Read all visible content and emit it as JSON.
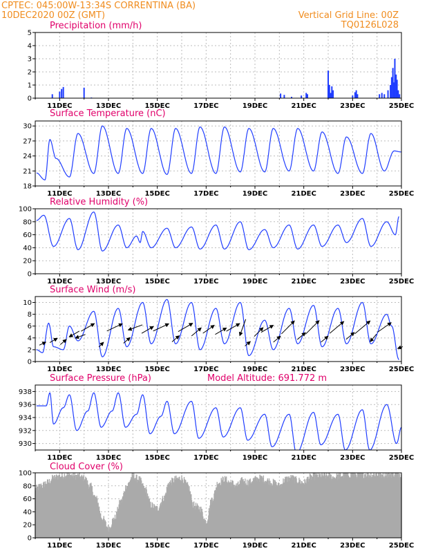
{
  "header": {
    "line1": "CPTEC:   045:00W-13:34S   CORRENTINA (BA)",
    "line2": "10DEC2020 00Z (GMT)",
    "right1": "Vertical Grid Line: 00Z",
    "right2": "TQ0126L028"
  },
  "colors": {
    "header": "#f08c1e",
    "title": "#e0006a",
    "line": "#1e3cff",
    "bar": "#1e3cff",
    "cloud": "#aaaaaa",
    "arrow": "#000000",
    "grid": "#bbbbbb"
  },
  "chart_data": [
    {
      "type": "bar",
      "title": "Precipitation (mm/h)",
      "x_ticks": [
        "11DEC",
        "13DEC",
        "15DEC",
        "17DEC",
        "19DEC",
        "21DEC",
        "23DEC",
        "25DEC"
      ],
      "x": {
        "start": "10DEC2020 00Z",
        "end": "25DEC2020 00Z",
        "unit": "hour"
      },
      "ylim": [
        0,
        5
      ],
      "y_ticks": [
        0,
        1,
        2,
        3,
        4,
        5
      ],
      "grid": true,
      "points": [
        [
          10.7,
          0.3
        ],
        [
          11.0,
          0.5
        ],
        [
          11.08,
          0.7
        ],
        [
          11.15,
          0.85
        ],
        [
          12.0,
          0.8
        ],
        [
          12.3,
          0.05
        ],
        [
          20.05,
          0.35
        ],
        [
          20.2,
          0.25
        ],
        [
          20.5,
          0.1
        ],
        [
          20.9,
          0.2
        ],
        [
          21.1,
          0.4
        ],
        [
          21.15,
          0.3
        ],
        [
          22.0,
          2.1
        ],
        [
          22.05,
          1.0
        ],
        [
          22.1,
          0.4
        ],
        [
          22.15,
          0.9
        ],
        [
          22.2,
          0.6
        ],
        [
          23.0,
          0.2
        ],
        [
          23.1,
          0.45
        ],
        [
          23.15,
          0.6
        ],
        [
          23.2,
          0.3
        ],
        [
          24.1,
          0.3
        ],
        [
          24.2,
          0.4
        ],
        [
          24.3,
          0.3
        ],
        [
          24.45,
          0.6
        ],
        [
          24.55,
          1.0
        ],
        [
          24.6,
          1.6
        ],
        [
          24.65,
          2.3
        ],
        [
          24.7,
          1.2
        ],
        [
          24.73,
          3.0
        ],
        [
          24.78,
          1.8
        ],
        [
          24.82,
          1.4
        ],
        [
          24.87,
          0.6
        ],
        [
          24.92,
          0.3
        ]
      ]
    },
    {
      "type": "line",
      "title": "Surface Temperature (nC)",
      "x_ticks": [
        "11DEC",
        "13DEC",
        "15DEC",
        "17DEC",
        "19DEC",
        "21DEC",
        "23DEC",
        "25DEC"
      ],
      "ylim": [
        18,
        31
      ],
      "y_ticks": [
        18,
        21,
        24,
        27,
        30
      ],
      "grid": true,
      "min_points": [
        [
          10.05,
          20.6
        ],
        [
          10.4,
          19.2
        ],
        [
          10.85,
          23.5
        ],
        [
          11.4,
          19.8
        ],
        [
          12.4,
          20.5
        ],
        [
          13.4,
          20.5
        ],
        [
          14.4,
          20.5
        ],
        [
          15.4,
          20.3
        ],
        [
          16.4,
          20.5
        ],
        [
          17.4,
          20.5
        ],
        [
          18.4,
          20.8
        ],
        [
          19.4,
          20.8
        ],
        [
          20.4,
          21.0
        ],
        [
          21.4,
          21.0
        ],
        [
          22.4,
          20.5
        ],
        [
          23.4,
          20.5
        ],
        [
          24.3,
          21.0
        ]
      ],
      "max_points": [
        [
          10.6,
          27.3
        ],
        [
          11.75,
          28.5
        ],
        [
          12.75,
          30.0
        ],
        [
          13.75,
          29.5
        ],
        [
          14.75,
          29.5
        ],
        [
          15.75,
          29.5
        ],
        [
          16.75,
          29.8
        ],
        [
          17.75,
          29.8
        ],
        [
          18.75,
          29.5
        ],
        [
          19.75,
          29.5
        ],
        [
          20.75,
          29.5
        ],
        [
          21.75,
          28.8
        ],
        [
          22.75,
          27.8
        ],
        [
          23.75,
          28.5
        ],
        [
          24.7,
          25.0
        ],
        [
          25.0,
          24.8
        ]
      ]
    },
    {
      "type": "line",
      "title": "Relative Humidity (%)",
      "x_ticks": [
        "11DEC",
        "13DEC",
        "15DEC",
        "17DEC",
        "19DEC",
        "21DEC",
        "23DEC",
        "25DEC"
      ],
      "ylim": [
        0,
        100
      ],
      "y_ticks": [
        0,
        20,
        40,
        60,
        80,
        100
      ],
      "grid": true,
      "min_points": [
        [
          10.75,
          42
        ],
        [
          11.75,
          37
        ],
        [
          12.75,
          35
        ],
        [
          13.75,
          40
        ],
        [
          14.3,
          48
        ],
        [
          14.75,
          40
        ],
        [
          15.75,
          40
        ],
        [
          16.75,
          38
        ],
        [
          17.75,
          38
        ],
        [
          18.75,
          37
        ],
        [
          19.75,
          40
        ],
        [
          20.75,
          38
        ],
        [
          21.75,
          42
        ],
        [
          22.75,
          48
        ],
        [
          23.75,
          42
        ],
        [
          24.75,
          60
        ]
      ],
      "max_points": [
        [
          10.05,
          82
        ],
        [
          10.35,
          90
        ],
        [
          11.4,
          85
        ],
        [
          12.4,
          95
        ],
        [
          13.4,
          75
        ],
        [
          14.15,
          58
        ],
        [
          14.4,
          65
        ],
        [
          15.4,
          70
        ],
        [
          16.4,
          72
        ],
        [
          17.4,
          75
        ],
        [
          18.4,
          80
        ],
        [
          19.4,
          68
        ],
        [
          20.4,
          75
        ],
        [
          21.4,
          75
        ],
        [
          22.4,
          75
        ],
        [
          23.4,
          85
        ],
        [
          24.4,
          80
        ],
        [
          24.9,
          88
        ]
      ]
    },
    {
      "type": "line",
      "title": "Surface Wind (m/s)",
      "x_ticks": [
        "11DEC",
        "13DEC",
        "15DEC",
        "17DEC",
        "19DEC",
        "21DEC",
        "23DEC",
        "25DEC"
      ],
      "ylim": [
        0,
        11
      ],
      "y_ticks": [
        0,
        2,
        4,
        6,
        8,
        10
      ],
      "grid": true,
      "min_points": [
        [
          10.05,
          2.0
        ],
        [
          10.3,
          1.5
        ],
        [
          10.75,
          2.5
        ],
        [
          11.15,
          2.0
        ],
        [
          11.75,
          3.5
        ],
        [
          12.75,
          0.8
        ],
        [
          13.75,
          2.5
        ],
        [
          14.75,
          3.0
        ],
        [
          15.75,
          3.0
        ],
        [
          16.75,
          2.0
        ],
        [
          17.75,
          3.0
        ],
        [
          18.75,
          1.0
        ],
        [
          19.75,
          2.0
        ],
        [
          20.75,
          3.0
        ],
        [
          21.75,
          2.5
        ],
        [
          22.75,
          3.0
        ],
        [
          23.75,
          3.0
        ],
        [
          24.9,
          0.3
        ]
      ],
      "max_points": [
        [
          10.55,
          6.5
        ],
        [
          11.4,
          6.0
        ],
        [
          12.4,
          8.5
        ],
        [
          13.4,
          9.0
        ],
        [
          14.4,
          10.0
        ],
        [
          15.4,
          10.5
        ],
        [
          16.4,
          10.0
        ],
        [
          17.4,
          9.0
        ],
        [
          18.4,
          10.0
        ],
        [
          19.4,
          7.0
        ],
        [
          20.4,
          9.0
        ],
        [
          21.4,
          9.5
        ],
        [
          22.4,
          9.0
        ],
        [
          23.4,
          10.0
        ],
        [
          24.4,
          8.0
        ],
        [
          24.6,
          6.0
        ]
      ],
      "arrows": [
        [
          10.3,
          25
        ],
        [
          10.75,
          30
        ],
        [
          11.15,
          40
        ],
        [
          11.6,
          210
        ],
        [
          11.85,
          200
        ],
        [
          12.15,
          30
        ],
        [
          12.7,
          45
        ],
        [
          13.25,
          25
        ],
        [
          13.75,
          40
        ],
        [
          14.1,
          200
        ],
        [
          14.6,
          30
        ],
        [
          15.15,
          25
        ],
        [
          15.75,
          40
        ],
        [
          16.15,
          30
        ],
        [
          16.6,
          40
        ],
        [
          17.1,
          35
        ],
        [
          17.6,
          30
        ],
        [
          18.1,
          30
        ],
        [
          18.5,
          250
        ],
        [
          18.7,
          40
        ],
        [
          19.15,
          45
        ],
        [
          19.5,
          30
        ],
        [
          19.9,
          40
        ],
        [
          20.35,
          45
        ],
        [
          20.9,
          40
        ],
        [
          21.35,
          45
        ],
        [
          21.85,
          40
        ],
        [
          22.35,
          40
        ],
        [
          22.9,
          40
        ],
        [
          23.4,
          40
        ],
        [
          23.85,
          230
        ],
        [
          24.3,
          35
        ],
        [
          24.95,
          200
        ]
      ]
    },
    {
      "type": "line",
      "title": "Surface Pressure (hPa)",
      "annotation": "Model Altitude: 691.772 m",
      "x_ticks": [
        "11DEC",
        "13DEC",
        "15DEC",
        "17DEC",
        "19DEC",
        "21DEC",
        "23DEC",
        "25DEC"
      ],
      "ylim": [
        929,
        939
      ],
      "y_ticks": [
        930,
        932,
        934,
        936,
        938
      ],
      "grid": true,
      "min_points": [
        [
          10.05,
          935.8
        ],
        [
          10.45,
          935.8
        ],
        [
          10.75,
          933.0
        ],
        [
          11.7,
          932.0
        ],
        [
          12.7,
          932.5
        ],
        [
          13.7,
          932.5
        ],
        [
          14.7,
          931.5
        ],
        [
          15.7,
          931.5
        ],
        [
          16.7,
          930.8
        ],
        [
          17.7,
          931.0
        ],
        [
          18.7,
          930.5
        ],
        [
          19.7,
          929.5
        ],
        [
          20.7,
          928.5
        ],
        [
          21.7,
          929.8
        ],
        [
          22.7,
          929.0
        ],
        [
          23.7,
          929.0
        ],
        [
          24.8,
          930.0
        ]
      ],
      "max_points": [
        [
          10.6,
          937.8
        ],
        [
          11.15,
          935.5
        ],
        [
          11.4,
          937.5
        ],
        [
          12.15,
          935.0
        ],
        [
          12.4,
          937.8
        ],
        [
          13.15,
          935.0
        ],
        [
          13.4,
          937.8
        ],
        [
          14.15,
          934.5
        ],
        [
          14.4,
          937.5
        ],
        [
          15.15,
          934.2
        ],
        [
          15.4,
          936.5
        ],
        [
          16.4,
          936.5
        ],
        [
          17.4,
          935.5
        ],
        [
          18.4,
          935.5
        ],
        [
          19.4,
          934.5
        ],
        [
          20.4,
          934.5
        ],
        [
          21.4,
          934.8
        ],
        [
          22.4,
          934.5
        ],
        [
          23.4,
          935.2
        ],
        [
          24.4,
          936.0
        ],
        [
          25.0,
          932.5
        ]
      ]
    },
    {
      "type": "area",
      "title": "Cloud Cover (%)",
      "x_ticks": [
        "11DEC",
        "13DEC",
        "15DEC",
        "17DEC",
        "19DEC",
        "21DEC",
        "23DEC",
        "25DEC"
      ],
      "ylim": [
        0,
        100
      ],
      "y_ticks": [
        0,
        20,
        40,
        60,
        80,
        100
      ],
      "grid": true,
      "points": [
        [
          10.0,
          75
        ],
        [
          10.25,
          80
        ],
        [
          10.5,
          85
        ],
        [
          10.75,
          92
        ],
        [
          11.0,
          95
        ],
        [
          11.25,
          97
        ],
        [
          11.5,
          96
        ],
        [
          11.75,
          95
        ],
        [
          12.0,
          92
        ],
        [
          12.25,
          80
        ],
        [
          12.5,
          60
        ],
        [
          12.75,
          30
        ],
        [
          13.0,
          15
        ],
        [
          13.25,
          30
        ],
        [
          13.5,
          55
        ],
        [
          13.75,
          80
        ],
        [
          14.0,
          95
        ],
        [
          14.25,
          90
        ],
        [
          14.5,
          75
        ],
        [
          14.75,
          50
        ],
        [
          15.0,
          45
        ],
        [
          15.25,
          60
        ],
        [
          15.5,
          85
        ],
        [
          15.75,
          90
        ],
        [
          16.0,
          92
        ],
        [
          16.25,
          80
        ],
        [
          16.5,
          50
        ],
        [
          16.75,
          45
        ],
        [
          17.0,
          25
        ],
        [
          17.25,
          60
        ],
        [
          17.5,
          85
        ],
        [
          17.75,
          90
        ],
        [
          18.0,
          85
        ],
        [
          18.25,
          80
        ],
        [
          18.5,
          88
        ],
        [
          18.75,
          85
        ],
        [
          19.0,
          90
        ],
        [
          19.25,
          92
        ],
        [
          19.5,
          88
        ],
        [
          19.75,
          85
        ],
        [
          20.0,
          80
        ],
        [
          20.25,
          90
        ],
        [
          20.5,
          92
        ],
        [
          20.75,
          88
        ],
        [
          21.0,
          85
        ],
        [
          21.25,
          93
        ],
        [
          21.5,
          95
        ],
        [
          21.75,
          96
        ],
        [
          22.0,
          95
        ],
        [
          22.25,
          93
        ],
        [
          22.5,
          96
        ],
        [
          22.75,
          97
        ],
        [
          23.0,
          98
        ],
        [
          23.25,
          97
        ],
        [
          23.5,
          98
        ],
        [
          23.75,
          97
        ],
        [
          24.0,
          98
        ],
        [
          24.25,
          97
        ],
        [
          24.5,
          98
        ],
        [
          24.75,
          99
        ],
        [
          25.0,
          98
        ]
      ]
    }
  ]
}
